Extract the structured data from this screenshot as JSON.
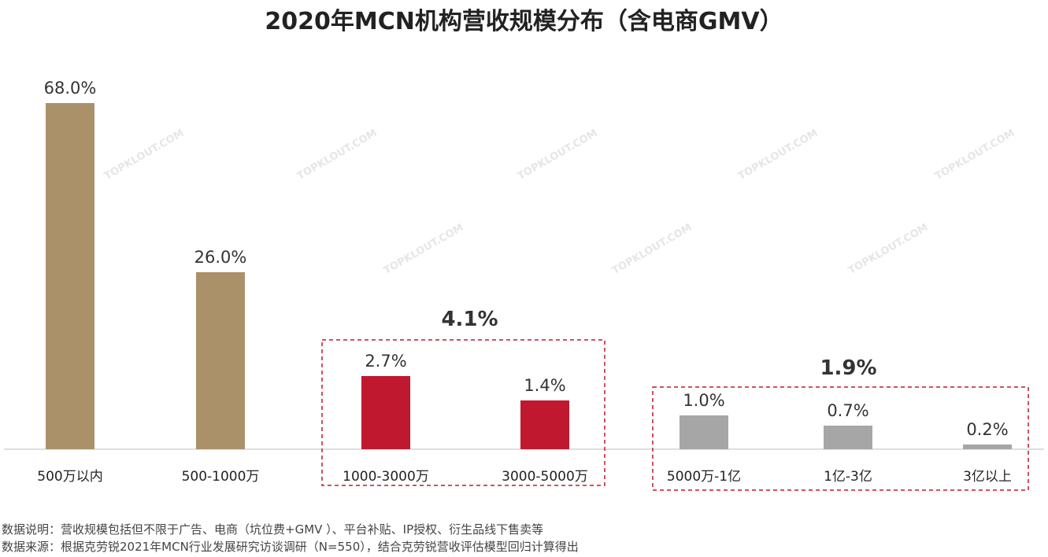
{
  "chart_data": {
    "type": "bar",
    "title": "2020年MCN机构营收规模分布（含电商GMV）",
    "xlabel": "",
    "ylabel": "",
    "categories": [
      "500万以内",
      "500-1000万",
      "1000-3000万",
      "3000-5000万",
      "5000万-1亿",
      "1亿-3亿",
      "3亿以上"
    ],
    "values": [
      68.0,
      26.0,
      2.7,
      1.4,
      1.0,
      0.7,
      0.2
    ],
    "value_labels": [
      "68.0%",
      "26.0%",
      "2.7%",
      "1.4%",
      "1.0%",
      "0.7%",
      "0.2%"
    ],
    "bar_colors": [
      "#AB9169",
      "#AB9169",
      "#C0182F",
      "#C0182F",
      "#A6A6A6",
      "#A6A6A6",
      "#A6A6A6"
    ],
    "groups": [
      {
        "label": "4.1%",
        "members": [
          2,
          3
        ],
        "color": "#C0182F"
      },
      {
        "label": "1.9%",
        "members": [
          4,
          5,
          6
        ],
        "color": "#C0182F"
      }
    ],
    "grid": false,
    "legend": "none"
  },
  "notes": {
    "line1": "数据说明：营收规模包括但不限于广告、电商（坑位费+GMV ）、平台补贴、IP授权、衍生品线下售卖等",
    "line2": "数据来源：根据克劳锐2021年MCN行业发展研究访谈调研（N=550），结合克劳锐营收评估模型回归计算得出"
  },
  "watermark": "TOPKLOUT.COM"
}
